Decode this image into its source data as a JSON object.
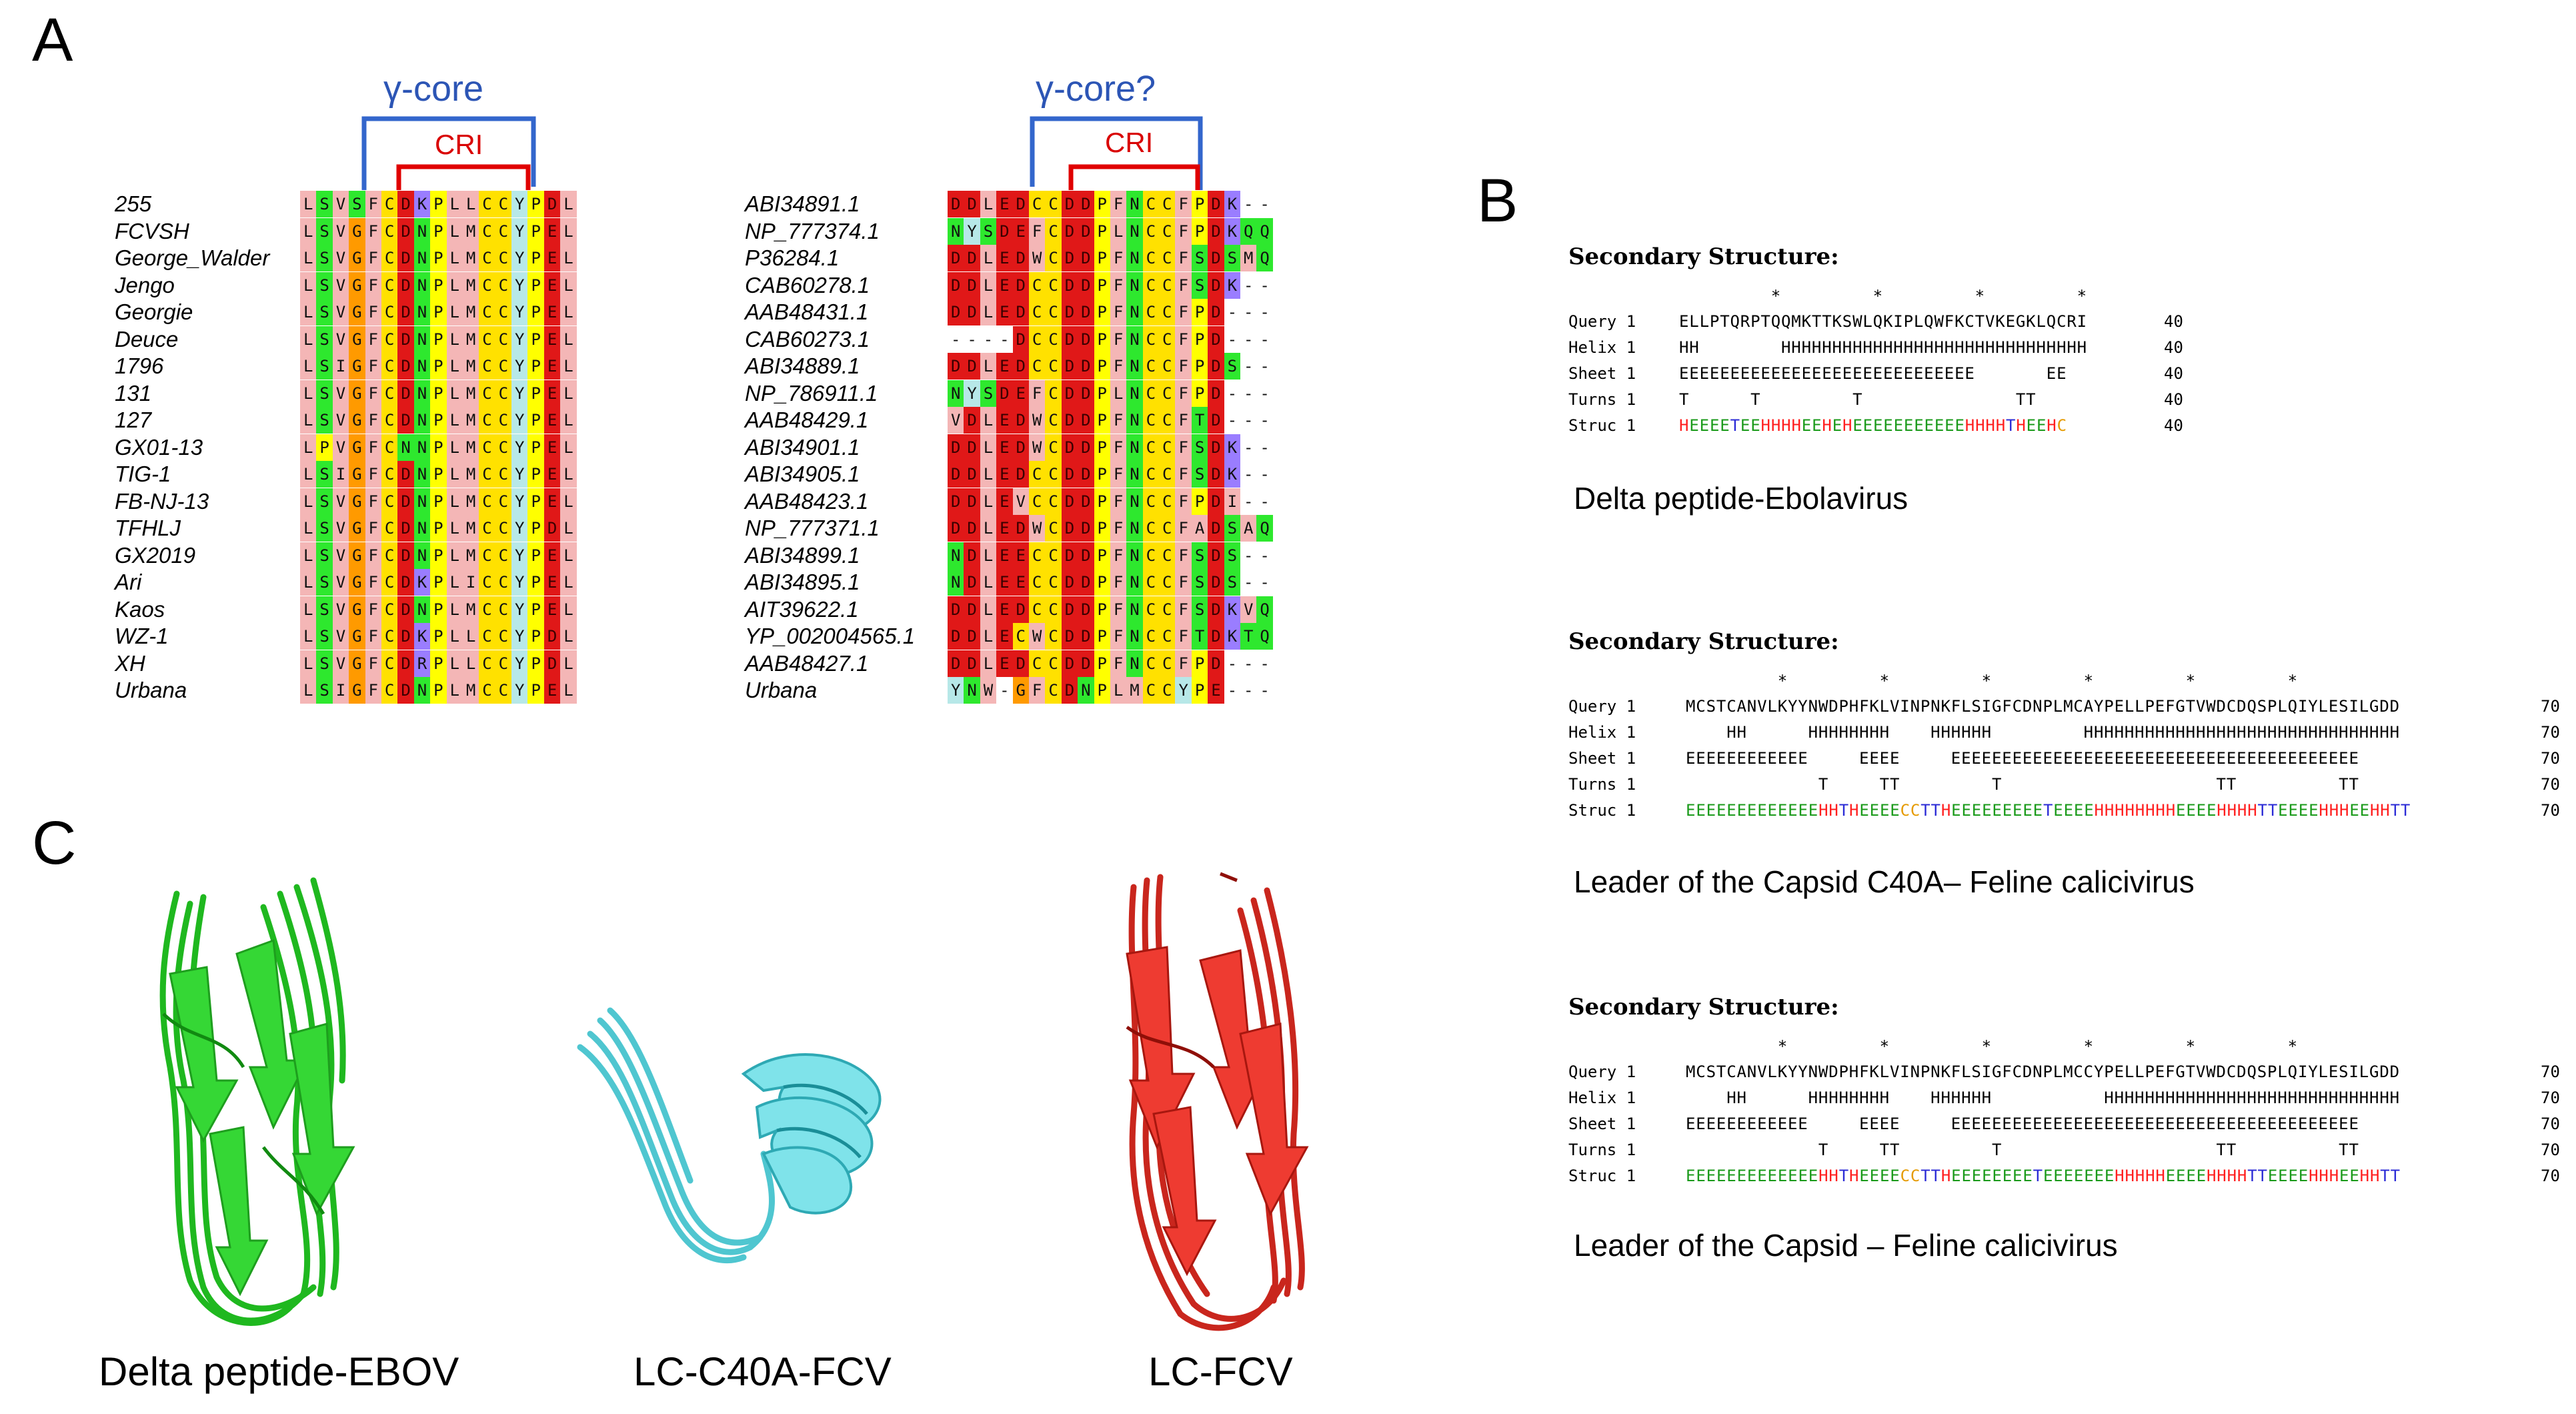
{
  "panel_labels": {
    "a": "A",
    "b": "B",
    "c": "C"
  },
  "panel_a": {
    "left": {
      "bracket_outer_label": "γ-core",
      "bracket_inner_label": "CRI",
      "names": [
        "255",
        "FCVSH",
        "George_Walder",
        "Jengo",
        "Georgie",
        "Deuce",
        "1796",
        "131",
        "127",
        "GX01-13",
        "TIG-1",
        "FB-NJ-13",
        "TFHLJ",
        "GX2019",
        "Ari",
        "Kaos",
        "WZ-1",
        "XH",
        "Urbana"
      ],
      "sequences": [
        "LSVSFCDKPLLCCYPDL",
        "LSVGFCDNPLMCCYPEL",
        "LSVGFCDNPLMCCYPEL",
        "LSVGFCDNPLMCCYPEL",
        "LSVGFCDNPLMCCYPEL",
        "LSVGFCDNPLMCCYPEL",
        "LSIGFCDNPLMCCYPEL",
        "LSVGFCDNPLMCCYPEL",
        "LSVGFCDNPLMCCYPEL",
        "LPVGFCNNPLMCCYPEL",
        "LSIGFCDNPLMCCYPEL",
        "LSVGFCDNPLMCCYPEL",
        "LSVGFCDNPLMCCYPDL",
        "LSVGFCDNPLMCCYPEL",
        "LSVGFCDKPLICCYPEL",
        "LSVGFCDNPLMCCYPEL",
        "LSVGFCDKPLLCCYPDL",
        "LSVGFCDRPLLCCYPDL",
        "LSIGFCDNPLMCCYPEL"
      ]
    },
    "right": {
      "bracket_outer_label": "γ-core?",
      "bracket_inner_label": "CRI",
      "names": [
        "ABI34891.1",
        "NP_777374.1",
        "P36284.1",
        "CAB60278.1",
        "AAB48431.1",
        "CAB60273.1",
        "ABI34889.1",
        "NP_786911.1",
        "AAB48429.1",
        "ABI34901.1",
        "ABI34905.1",
        "AAB48423.1",
        "NP_777371.1",
        "ABI34899.1",
        "ABI34895.1",
        "AIT39622.1",
        "YP_002004565.1",
        "AAB48427.1",
        "Urbana"
      ],
      "sequences": [
        "DDLEDCCDDPFNCCFPDK--",
        "NYSDEFCDDPLNCCFPDKQQ",
        "DDLEDWCDDPFNCCFSDSMQ",
        "DDLEDCCDDPFNCCFSDK--",
        "DDLEDCCDDPFNCCFPD---",
        "----DCCDDPFNCCFPD---",
        "DDLEDCCDDPFNCCFPDS--",
        "NYSDEFCDDPLNCCFPD---",
        "VDLEDWCDDPFNCCFTD---",
        "DDLEDWCDDPFNCCFSDK--",
        "DDLEDCCDDPFNCCFSDK--",
        "DDLEVCCDDPFNCCFPDI--",
        "DDLEDWCDDPFNCCFADSAQ",
        "NDLEECCDDPFNCCFSDS--",
        "NDLEECCDDPFNCCFSDS--",
        "DDLEDCCDDPFNCCFSDKVQ",
        "DDLECWCDDPFNCCFTDKTQ",
        "DDLEDCCDDPFNCCFPD---",
        "YNW-GFCDNPLMCCYPE---"
      ]
    }
  },
  "panel_b": [
    {
      "title": "Secondary Structure:",
      "stars": "         *         *         *         *",
      "rows": [
        {
          "label": "Query 1",
          "seq": "ELLPTQRPTQQMKTTKSWLQKIPLQWFKCTVKEGKLQCRI",
          "end": "40"
        },
        {
          "label": "Helix 1",
          "seq": "HH        HHHHHHHHHHHHHHHHHHHHHHHHHHHHHH",
          "end": "40"
        },
        {
          "label": "Sheet 1",
          "seq": "EEEEEEEEEEEEEEEEEEEEEEEEEEEEE       EE  ",
          "end": "40"
        },
        {
          "label": "Turns 1",
          "seq": "T      T         T               TT     ",
          "end": "40"
        },
        {
          "label": "Struc 1",
          "seq": "HEEEETEEHHHHEEHEHEEEEEEEEEEEHHHHTHEEHC",
          "end": "40"
        }
      ],
      "caption": "Delta peptide-Ebolavirus"
    },
    {
      "title": "Secondary Structure:",
      "stars": "         *         *         *         *         *         *",
      "rows": [
        {
          "label": "Query 1",
          "seq": "MCSTCANVLKYYNWDPHFKLVINPNKFLSIGFCDNPLMCAYPELLPEFGTVWDCDQSPLQIYLESILGDD",
          "end": "70"
        },
        {
          "label": "Helix 1",
          "seq": "    HH      HHHHHHHH    HHHHHH         HHHHHHHHHHHHHHHHHHHHHHHHHHHHHHH",
          "end": "70"
        },
        {
          "label": "Sheet 1",
          "seq": "EEEEEEEEEEEE     EEEE     EEEEEEEEEEEEEEEEEEEEEEEEEEEEEEEEEEEEEEEE",
          "end": "70"
        },
        {
          "label": "Turns 1",
          "seq": "             T     TT         T                     TT          TT",
          "end": "70"
        },
        {
          "label": "Struc 1",
          "seq": "EEEEEEEEEEEEEHHTHEEEECCTTHEEEEEEEEETEEEEHHHHHHHHEEEEHHHHTTEEEEHHHEEHHTT",
          "end": "70"
        }
      ],
      "caption": "Leader of the Capsid C40A– Feline calicivirus"
    },
    {
      "title": "Secondary Structure:",
      "stars": "         *         *         *         *         *         *",
      "rows": [
        {
          "label": "Query 1",
          "seq": "MCSTCANVLKYYNWDPHFKLVINPNKFLSIGFCDNPLMCCYPELLPEFGTVWDCDQSPLQIYLESILGDD",
          "end": "70"
        },
        {
          "label": "Helix 1",
          "seq": "    HH      HHHHHHHH    HHHHHH           HHHHHHHHHHHHHHHHHHHHHHHHHHHHH",
          "end": "70"
        },
        {
          "label": "Sheet 1",
          "seq": "EEEEEEEEEEEE     EEEE     EEEEEEEEEEEEEEEEEEEEEEEEEEEEEEEEEEEEEEEE",
          "end": "70"
        },
        {
          "label": "Turns 1",
          "seq": "             T     TT         T                     TT          TT",
          "end": "70"
        },
        {
          "label": "Struc 1",
          "seq": "EEEEEEEEEEEEEHHTHEEEECCTTHEEEEEEEETEEEEEEEHHHHHEEEEHHHHTTEEEEHHHEEHHTT",
          "end": "70"
        }
      ],
      "caption": "Leader of the Capsid – Feline calicivirus"
    }
  ],
  "panel_c": {
    "captions": [
      "Delta peptide-EBOV",
      "LC-C40A-FCV",
      "LC-FCV"
    ]
  },
  "colors": {
    "L": "#f4b6b6",
    "I": "#f4b6b6",
    "M": "#f4b6b6",
    "V": "#f4b6b6",
    "A": "#f4b6b6",
    "W": "#f4b6b6",
    "F": "#f4b6b6",
    "S": "#2ee82e",
    "T": "#2ee82e",
    "N": "#2ee82e",
    "Q": "#2ee82e",
    "G": "#ff9a00",
    "P": "#ffff00",
    "C": "#ffe100",
    "Y": "#b7e8e8",
    "H": "#b7e8e8",
    "D": "#e01818",
    "E": "#e01818",
    "K": "#9a7dff",
    "R": "#9a7dff",
    "-": "#ffffff",
    "bracket_outer": "#3366cc",
    "bracket_inner": "#e00000",
    "ss_H": "#ff1e1e",
    "ss_E": "#1a9a1a",
    "ss_T": "#2b2bd6",
    "ss_C": "#e59a00",
    "struct_ebov": "#2fd12f",
    "struct_c40a": "#68d8e0",
    "struct_fcv": "#e3342a"
  }
}
